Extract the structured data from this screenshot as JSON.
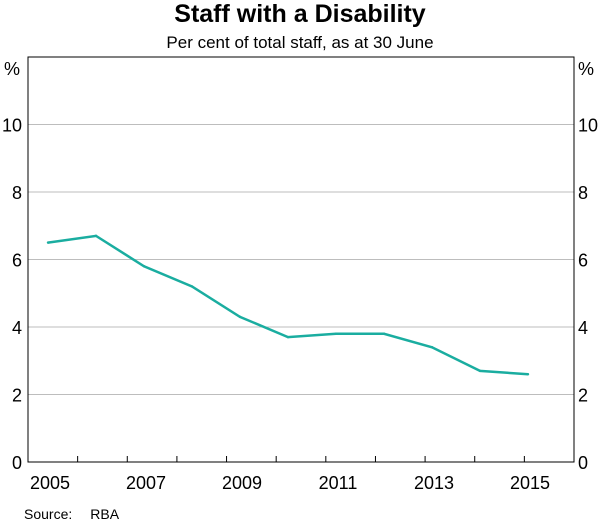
{
  "chart_data": {
    "type": "line",
    "title": "Staff with a Disability",
    "subtitle": "Per cent of total staff, as at 30 June",
    "ylabel_left": "%",
    "ylabel_right": "%",
    "x": [
      2005,
      2006,
      2007,
      2008,
      2009,
      2010,
      2011,
      2012,
      2013,
      2014,
      2015
    ],
    "series": [
      {
        "values": [
          6.5,
          6.7,
          5.8,
          5.2,
          4.3,
          3.7,
          3.8,
          3.8,
          3.4,
          2.7,
          2.6
        ],
        "color": "#1aada0"
      }
    ],
    "xticks": [
      "2005",
      "2007",
      "2009",
      "2011",
      "2013",
      "2015"
    ],
    "yticks": [
      0,
      2,
      4,
      6,
      8,
      10
    ],
    "ylim": [
      0,
      12
    ],
    "grid": true,
    "legend": "none",
    "source_label": "Source:",
    "source": "RBA"
  }
}
